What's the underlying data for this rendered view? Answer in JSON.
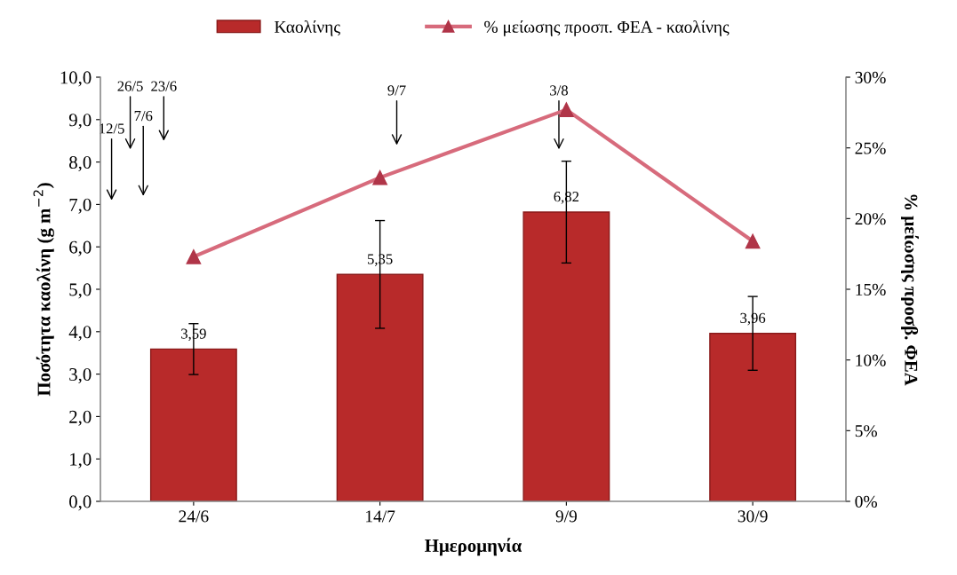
{
  "chart_data": {
    "type": "bar",
    "xlabel": "Ημερομηνία",
    "ylabel": "Ποσότητα καολίνη (g m$^{−2}$)",
    "y2label": "% μείωσης προσβ. ΦΕΑ",
    "categories": [
      "24/6",
      "14/7",
      "9/9",
      "30/9"
    ],
    "series": [
      {
        "name": "Καολίνης",
        "color": "#b82a2a",
        "values": [
          3.59,
          5.35,
          6.82,
          3.96
        ],
        "errors": [
          0.6,
          1.27,
          1.2,
          0.87
        ],
        "value_labels": [
          "3,59",
          "5,35",
          "6,82",
          "3,96"
        ]
      },
      {
        "name": "% μείωσης προσπ. ΦΕΑ - καολίνης",
        "type": "line",
        "axis": "y2",
        "color": "#d76b7c",
        "marker": "triangle",
        "values": [
          17.3,
          22.9,
          27.7,
          18.4
        ]
      }
    ],
    "ylim": [
      0,
      10
    ],
    "yticks": [
      {
        "value": 0,
        "label": "0,0"
      },
      {
        "value": 1,
        "label": "1,0"
      },
      {
        "value": 2,
        "label": "2,0"
      },
      {
        "value": 3,
        "label": "3,0"
      },
      {
        "value": 4,
        "label": "4,0"
      },
      {
        "value": 5,
        "label": "5,0"
      },
      {
        "value": 6,
        "label": "6,0"
      },
      {
        "value": 7,
        "label": "7,0"
      },
      {
        "value": 8,
        "label": "8,0"
      },
      {
        "value": 9,
        "label": "9,0"
      },
      {
        "value": 10,
        "label": "10,0"
      }
    ],
    "y2lim": [
      0,
      30
    ],
    "y2ticks": [
      {
        "value": 0,
        "label": "0%"
      },
      {
        "value": 5,
        "label": "5%"
      },
      {
        "value": 10,
        "label": "10%"
      },
      {
        "value": 15,
        "label": "15%"
      },
      {
        "value": 20,
        "label": "20%"
      },
      {
        "value": 25,
        "label": "25%"
      },
      {
        "value": 30,
        "label": "30%"
      }
    ],
    "annotations": [
      "12/5",
      "26/5",
      "7/6",
      "23/6",
      "9/7",
      "3/8"
    ],
    "legend": "top",
    "grid": false
  }
}
